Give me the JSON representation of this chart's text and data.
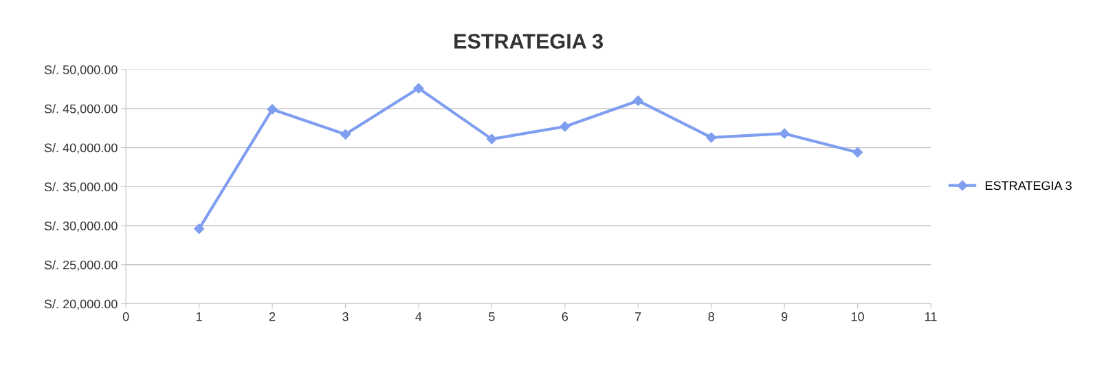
{
  "chart_data": {
    "type": "line",
    "title": "ESTRATEGIA 3",
    "x": [
      1,
      2,
      3,
      4,
      5,
      6,
      7,
      8,
      9,
      10
    ],
    "series": [
      {
        "name": "ESTRATEGIA 3",
        "color": "#7f9ef0",
        "values": [
          29600,
          44900,
          41700,
          47600,
          41100,
          42700,
          46000,
          41300,
          41800,
          39400
        ]
      }
    ],
    "xlim": [
      0,
      11
    ],
    "xticks": [
      0,
      1,
      2,
      3,
      4,
      5,
      6,
      7,
      8,
      9,
      10,
      11
    ],
    "ylim": [
      20000,
      50000
    ],
    "yticks": [
      {
        "value": 20000,
        "label": "S/. 20,000.00"
      },
      {
        "value": 25000,
        "label": "S/. 25,000.00"
      },
      {
        "value": 30000,
        "label": "S/. 30,000.00"
      },
      {
        "value": 35000,
        "label": "S/. 35,000.00"
      },
      {
        "value": 40000,
        "label": "S/. 40,000.00"
      },
      {
        "value": 45000,
        "label": "S/. 45,000.00"
      },
      {
        "value": 50000,
        "label": "S/. 50,000.00"
      }
    ],
    "grid": "y",
    "legend": "right",
    "marker": "diamond",
    "line_style": "solid"
  }
}
